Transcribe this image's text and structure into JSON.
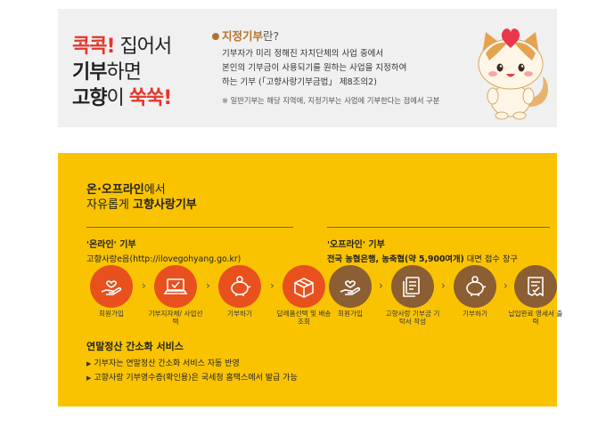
{
  "banner": {
    "slogan": {
      "l1_red": "콕콕!",
      "l1_rest": " 집어서",
      "l2_bold": "기부",
      "l2_rest": "하면",
      "l3_bold": "고향",
      "l3_mid": "이 ",
      "l3_red": "쑥쑥!"
    },
    "definition": {
      "title_bold": "지정기부",
      "title_rest": "란?",
      "lines": [
        "기부자가 미리 정해진 자치단체의 사업 중에서",
        "본인의 기부금이 사용되기를 원하는 사업을 지정하여",
        "하는 기부 (「고향사랑기부금법」 제8조의2)"
      ],
      "note": "※ 일반기부는 해당 지역에, 지정기부는 사업에 기부한다는 점에서 구분"
    },
    "mascot_icon": "cat-mascot-with-heart-icon"
  },
  "section": {
    "title1_bold": "온·오프라인",
    "title1_rest": "에서",
    "title2_pre": "자유롭게 ",
    "title2_bold": "고향사랑기부",
    "online": {
      "heading": "'온라인' 기부",
      "sub": "고향사랑e음(http://ilovegohyang.go.kr)",
      "color": "#e8501e",
      "steps": [
        {
          "icon": "hand-heart-icon",
          "label": "회원가입"
        },
        {
          "icon": "laptop-check-icon",
          "label": "기부지자체/ 사업선택"
        },
        {
          "icon": "piggy-bank-icon",
          "label": "기부하기"
        },
        {
          "icon": "gift-box-icon",
          "label": "답례품선택 및 배송조회"
        }
      ]
    },
    "offline": {
      "heading": "'오프라인' 기부",
      "sub_bold": "전국 농협은행, 농축협(약 5,900여개)",
      "sub_rest": " 대면 접수 창구",
      "color": "#8b5e34",
      "steps": [
        {
          "icon": "hand-heart-icon",
          "label": "회원가입"
        },
        {
          "icon": "documents-icon",
          "label": "고향사랑 기부금 기탁서 작성"
        },
        {
          "icon": "piggy-bank-icon",
          "label": "기부하기"
        },
        {
          "icon": "receipt-check-icon",
          "label": "납입완료 영세서 출력"
        }
      ]
    },
    "arrow": "›",
    "tax": {
      "title": "연말정산 간소화 서비스",
      "bullet": "▶",
      "items": [
        "기부자는 연말정산 간소화 서비스 자동 반영",
        "고향사랑 기부영수증(확인용)은 국세청 홈택스에서 발급 가능"
      ]
    }
  }
}
